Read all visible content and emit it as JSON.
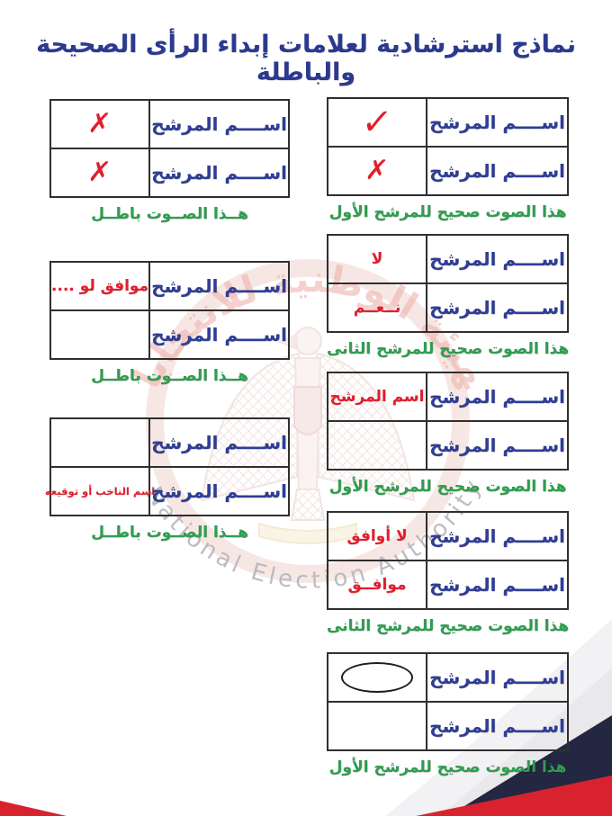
{
  "title": "نماذج استرشادية لعلامات إبداء الرأى الصحيحة والباطلة",
  "right_tables": [
    {
      "caption": "هذا الصوت صحيح للمرشح الأول",
      "rows": [
        {
          "name": "اســــم المرشح",
          "mark_type": "check",
          "mark_text": "✓"
        },
        {
          "name": "اســــم المرشح",
          "mark_type": "cross",
          "mark_text": "✗"
        }
      ]
    },
    {
      "caption": "هذا الصوت صحيح للمرشح الثانى",
      "rows": [
        {
          "name": "اســــم المرشح",
          "mark_type": "text",
          "mark_text": "لا"
        },
        {
          "name": "اســــم المرشح",
          "mark_type": "text",
          "mark_text": "نــعــم"
        }
      ]
    },
    {
      "caption": "هذا الصوت صحيح للمرشح الأول",
      "rows": [
        {
          "name": "اســــم المرشح",
          "mark_type": "text",
          "mark_text": "اسم المرشح"
        },
        {
          "name": "اســــم المرشح",
          "mark_type": "none",
          "mark_text": ""
        }
      ]
    },
    {
      "caption": "هذا الصوت صحيح للمرشح الثانى",
      "rows": [
        {
          "name": "اســــم المرشح",
          "mark_type": "text",
          "mark_text": "لا أوافق"
        },
        {
          "name": "اســــم المرشح",
          "mark_type": "text",
          "mark_text": "موافــق"
        }
      ]
    },
    {
      "caption": "هذا الصوت صحيح للمرشح الأول",
      "rows": [
        {
          "name": "اســــم المرشح",
          "mark_type": "oval",
          "mark_text": ""
        },
        {
          "name": "اســــم المرشح",
          "mark_type": "none",
          "mark_text": ""
        }
      ]
    }
  ],
  "left_tables": [
    {
      "caption": "هــذا الصــوت باطــل",
      "rows": [
        {
          "name": "اســــم المرشح",
          "mark_type": "cross",
          "mark_text": "✗"
        },
        {
          "name": "اســــم المرشح",
          "mark_type": "cross",
          "mark_text": "✗"
        }
      ]
    },
    {
      "caption": "هــذا الصــوت باطــل",
      "rows": [
        {
          "name": "اســــم المرشح",
          "mark_type": "text",
          "mark_text": "موافق لو ...."
        },
        {
          "name": "اســــم المرشح",
          "mark_type": "none",
          "mark_text": ""
        }
      ]
    },
    {
      "caption": "هــذا الصــوت باطــل",
      "rows": [
        {
          "name": "اســــم المرشح",
          "mark_type": "none",
          "mark_text": ""
        },
        {
          "name": "اســــم المرشح",
          "mark_type": "text-small",
          "mark_text": "اسم الناخب أو توقيعه"
        }
      ]
    }
  ],
  "watermark": {
    "arabic_text": "الهيئة الوطنية للانتخابات",
    "english_text": "National Election Authority"
  },
  "colors": {
    "title_blue": "#2b3990",
    "name_blue": "#2e3d96",
    "mark_red": "#e01f2d",
    "caption_green": "#2e9e4f",
    "border": "#2f2f2f",
    "deco_red": "#d8232f",
    "deco_navy": "#232741"
  }
}
